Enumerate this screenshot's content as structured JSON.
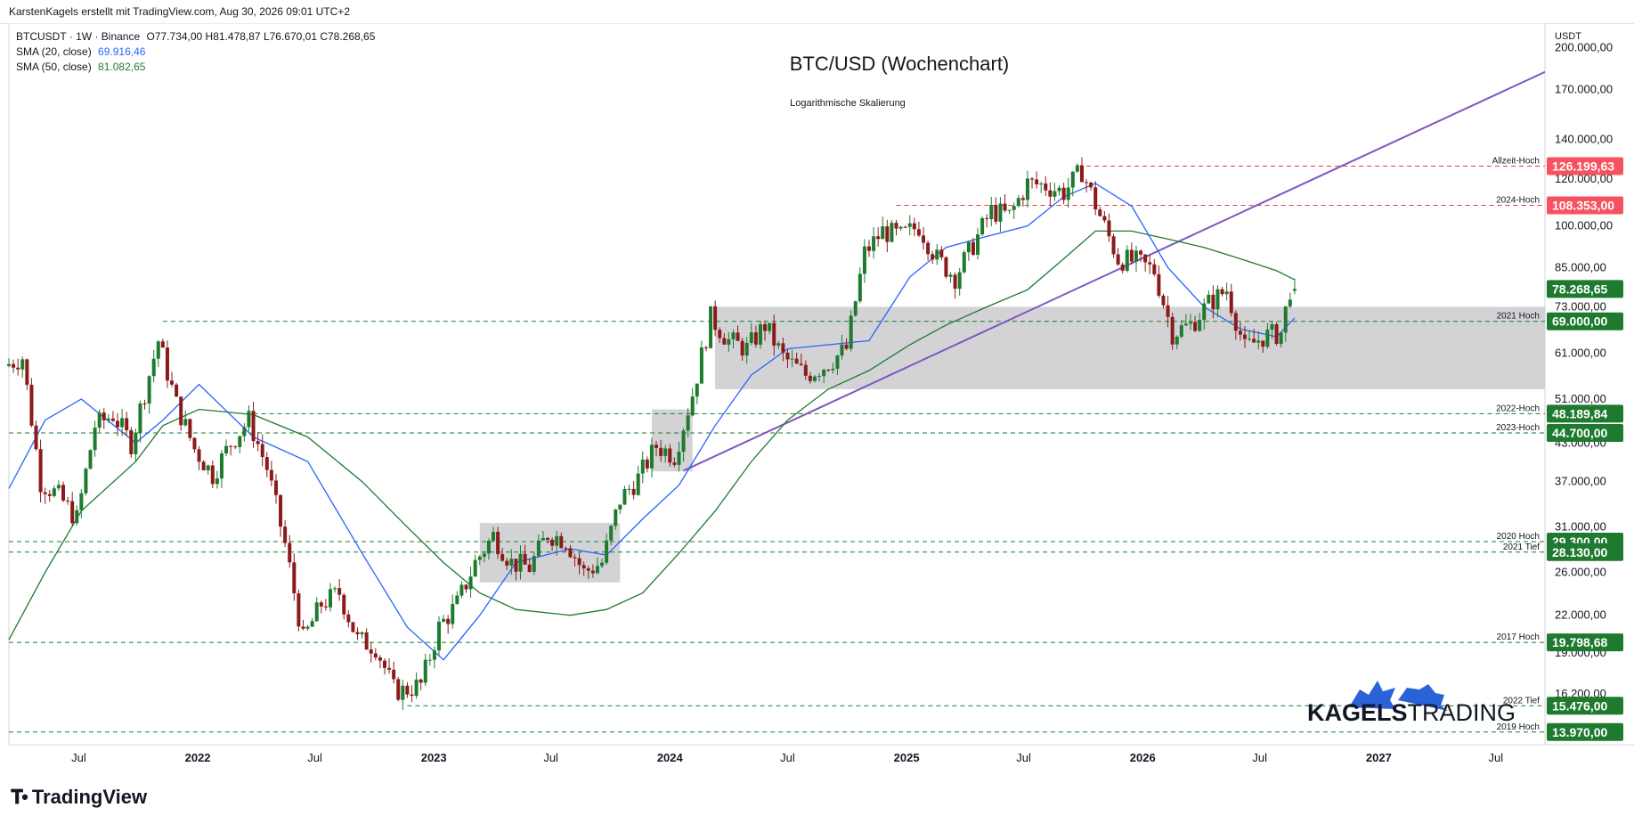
{
  "header": {
    "attribution": "KarstenKagels erstellt mit TradingView.com, Aug 30, 2026 09:01 UTC+2"
  },
  "legend": {
    "symbol_line": "BTCUSDT · 1W · Binance",
    "ohlc": "O77.734,00  H81.478,87  L76.670,01  C78.268,65",
    "sma20_label": "SMA (20, close)",
    "sma20_value": "69.916,46",
    "sma50_label": "SMA (50, close)",
    "sma50_value": "81.082,65"
  },
  "branding": {
    "tradingview": "TradingView",
    "kagels_bold": "KAGELS",
    "kagels_light": "TRADING"
  },
  "colors": {
    "up": "#26a69a",
    "bull_candle": "#1e7a2f",
    "bear_candle": "#8b1a1a",
    "sma20": "#2962ff",
    "sma50": "#1e7a2f",
    "trendline": "#7e57c2",
    "support": "#1e7a2f",
    "resistance": "#f23645",
    "zone": "#c8c8cc"
  },
  "chart_data": {
    "type": "candlestick",
    "title": "BTC/USD (Wochenchart)",
    "subtitle": "Logarithmische Skalierung",
    "currency": "USDT",
    "y_scale": "log",
    "y_ticks": [
      "200.000,00",
      "170.000,00",
      "140.000,00",
      "120.000,00",
      "100.000,00",
      "85.000,00",
      "73.000,00",
      "61.000,00",
      "51.000,00",
      "43.000,00",
      "37.000,00",
      "31.000,00",
      "26.000,00",
      "22.000,00",
      "19.000,00",
      "16.200,00"
    ],
    "y_tick_values": [
      200000,
      170000,
      140000,
      120000,
      100000,
      85000,
      73000,
      61000,
      51000,
      43000,
      37000,
      31000,
      26000,
      22000,
      19000,
      16200
    ],
    "x_ticks": [
      "Jul",
      "2022",
      "Jul",
      "2023",
      "Jul",
      "2024",
      "Jul",
      "2025",
      "Jul",
      "2026",
      "Jul",
      "2027",
      "Jul"
    ],
    "x_tick_dates": [
      "2021-07-01",
      "2022-01-01",
      "2022-07-01",
      "2023-01-01",
      "2023-07-01",
      "2024-01-01",
      "2024-07-01",
      "2025-01-01",
      "2025-07-01",
      "2026-01-01",
      "2026-07-01",
      "2027-01-01",
      "2027-07-01"
    ],
    "x_range": [
      "2021-03-15",
      "2027-09-15"
    ],
    "y_range": [
      13300,
      220000
    ],
    "last_price": "78.268,65",
    "levels": [
      {
        "label": "Allzeit-Hoch",
        "value": 126199.63,
        "price_label": "126.199,63",
        "kind": "resistance",
        "start": "2025-10-06"
      },
      {
        "label": "2024-Hoch",
        "value": 108353,
        "price_label": "108.353,00",
        "kind": "resistance",
        "start": "2024-12-16"
      },
      {
        "label": "2021 Hoch",
        "value": 69000,
        "price_label": "69.000,00",
        "kind": "support",
        "start": "2021-11-08"
      },
      {
        "label": "2022-Hoch",
        "value": 48189.84,
        "price_label": "48.189,84",
        "kind": "support",
        "start": "2022-03-28"
      },
      {
        "label": "2023-Hoch",
        "value": 44700,
        "price_label": "44.700,00",
        "kind": "support",
        "start": "2021-03-15"
      },
      {
        "label": "2020 Hoch",
        "value": 29300,
        "price_label": "29.300,00",
        "kind": "support",
        "start": "2021-03-15"
      },
      {
        "label": "2021 Tief",
        "value": 28130,
        "price_label": "28.130,00",
        "kind": "support",
        "start": "2021-03-15"
      },
      {
        "label": "2017 Hoch",
        "value": 19798.68,
        "price_label": "19.798,68",
        "kind": "support",
        "start": "2021-03-15"
      },
      {
        "label": "2022 Tief",
        "value": 15476,
        "price_label": "15.476,00",
        "kind": "support",
        "start": "2022-11-21"
      },
      {
        "label": "2019 Hoch",
        "value": 13970,
        "price_label": "13.970,00",
        "kind": "support",
        "start": "2021-03-15"
      }
    ],
    "zones": [
      {
        "x0": "2023-03-13",
        "x1": "2023-10-16",
        "y0": 25000,
        "y1": 31500
      },
      {
        "x0": "2023-12-04",
        "x1": "2024-02-05",
        "y0": 38500,
        "y1": 49000
      },
      {
        "x0": "2024-03-11",
        "x1": "2027-09-15",
        "y0": 53000,
        "y1": 73000
      }
    ],
    "trendline": {
      "x0": "2024-01-22",
      "y0": 38600,
      "x1": "2027-09-15",
      "y1": 182000
    },
    "price_path": {
      "dates": [
        "2021-03-15",
        "2021-04-12",
        "2021-05-10",
        "2021-06-07",
        "2021-07-05",
        "2021-08-02",
        "2021-08-30",
        "2021-09-27",
        "2021-11-08",
        "2021-12-06",
        "2022-01-03",
        "2022-01-31",
        "2022-02-28",
        "2022-03-28",
        "2022-04-25",
        "2022-05-23",
        "2022-06-20",
        "2022-07-18",
        "2022-08-15",
        "2022-09-12",
        "2022-10-10",
        "2022-11-07",
        "2022-11-21",
        "2022-12-19",
        "2023-01-16",
        "2023-02-13",
        "2023-03-13",
        "2023-04-10",
        "2023-05-08",
        "2023-06-05",
        "2023-07-03",
        "2023-07-31",
        "2023-08-28",
        "2023-09-25",
        "2023-10-23",
        "2023-11-20",
        "2023-12-18",
        "2024-01-15",
        "2024-02-12",
        "2024-03-11",
        "2024-04-08",
        "2024-05-06",
        "2024-06-03",
        "2024-07-01",
        "2024-08-05",
        "2024-09-02",
        "2024-10-07",
        "2024-11-04",
        "2024-12-02",
        "2024-12-30",
        "2025-01-27",
        "2025-02-24",
        "2025-03-24",
        "2025-04-21",
        "2025-05-19",
        "2025-06-16",
        "2025-07-14",
        "2025-08-11",
        "2025-09-08",
        "2025-10-06",
        "2025-11-03",
        "2025-12-01",
        "2025-12-29",
        "2026-01-26",
        "2026-02-23",
        "2026-03-23",
        "2026-04-20",
        "2026-05-18",
        "2026-06-15",
        "2026-07-13",
        "2026-08-10",
        "2026-08-24"
      ],
      "values": [
        58000,
        60000,
        37000,
        35000,
        32000,
        46000,
        48000,
        43000,
        64000,
        50000,
        42000,
        38000,
        43000,
        47000,
        39000,
        29000,
        20000,
        23000,
        24000,
        20000,
        19500,
        16500,
        16400,
        16800,
        21000,
        23000,
        27000,
        30000,
        27000,
        26500,
        30200,
        29500,
        26000,
        27000,
        34500,
        37500,
        42500,
        41000,
        52000,
        70000,
        64000,
        62000,
        68000,
        60000,
        56000,
        58000,
        62000,
        90000,
        98000,
        96000,
        100000,
        88000,
        82000,
        93000,
        106000,
        104000,
        118000,
        117000,
        114000,
        124000,
        104000,
        88000,
        87000,
        84000,
        66000,
        68000,
        74000,
        78000,
        62000,
        65000,
        66000,
        78268
      ]
    },
    "sma20": {
      "dates": [
        "2021-03-15",
        "2021-05-10",
        "2021-07-05",
        "2021-09-27",
        "2021-11-08",
        "2022-01-03",
        "2022-03-28",
        "2022-06-20",
        "2022-09-12",
        "2022-11-21",
        "2023-01-16",
        "2023-03-13",
        "2023-05-08",
        "2023-07-31",
        "2023-09-25",
        "2023-11-20",
        "2024-01-15",
        "2024-03-11",
        "2024-05-06",
        "2024-07-01",
        "2024-09-02",
        "2024-11-04",
        "2025-01-06",
        "2025-03-03",
        "2025-05-05",
        "2025-07-07",
        "2025-09-01",
        "2025-10-20",
        "2025-12-15",
        "2026-02-09",
        "2026-04-06",
        "2026-06-01",
        "2026-07-27",
        "2026-08-24"
      ],
      "values": [
        36000,
        47000,
        51000,
        43000,
        47000,
        54000,
        44000,
        40000,
        28000,
        21000,
        18500,
        22000,
        27000,
        28500,
        27800,
        32000,
        36500,
        46000,
        56000,
        62000,
        63000,
        64000,
        82000,
        92000,
        96000,
        100000,
        112000,
        118000,
        108000,
        85000,
        73000,
        67000,
        65000,
        69916
      ]
    },
    "sma50": {
      "dates": [
        "2021-03-15",
        "2021-05-10",
        "2021-07-05",
        "2021-09-27",
        "2021-11-08",
        "2022-01-03",
        "2022-03-28",
        "2022-06-20",
        "2022-09-12",
        "2022-11-21",
        "2023-01-16",
        "2023-03-13",
        "2023-05-08",
        "2023-07-31",
        "2023-09-25",
        "2023-11-20",
        "2024-01-15",
        "2024-03-11",
        "2024-05-06",
        "2024-07-01",
        "2024-09-02",
        "2024-11-04",
        "2025-01-06",
        "2025-03-03",
        "2025-05-05",
        "2025-07-07",
        "2025-09-01",
        "2025-10-20",
        "2025-12-15",
        "2026-02-09",
        "2026-04-06",
        "2026-06-01",
        "2026-07-27",
        "2026-08-24"
      ],
      "values": [
        20000,
        26000,
        33000,
        40000,
        46000,
        49000,
        48000,
        44000,
        37000,
        31000,
        27000,
        24000,
        22500,
        22000,
        22500,
        24000,
        28000,
        33000,
        40000,
        47000,
        53000,
        57000,
        63000,
        68000,
        73000,
        78000,
        88000,
        98000,
        98000,
        95000,
        92000,
        88000,
        84000,
        81083
      ]
    }
  }
}
